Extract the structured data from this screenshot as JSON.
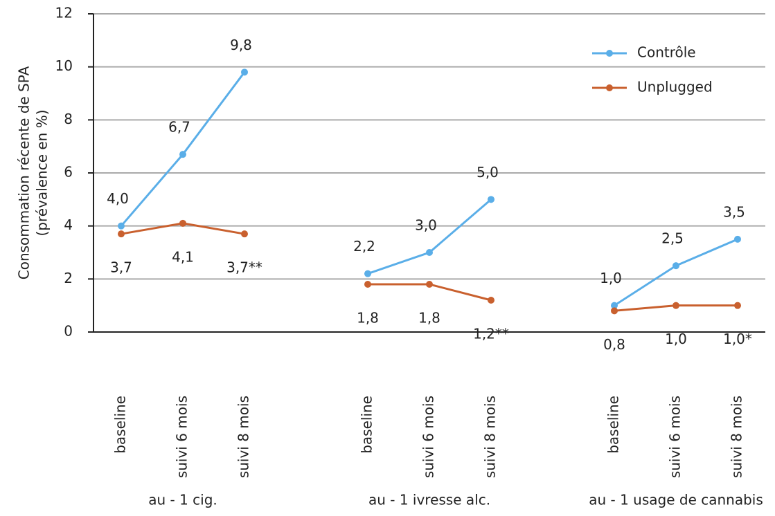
{
  "chart_data": {
    "type": "line",
    "ylabel": [
      "Consommation récente de SPA",
      "(prévalence en %)"
    ],
    "categories": [
      "baseline",
      "suivi 6 mois",
      "suivi 8 mois",
      null,
      "baseline",
      "suivi 6 mois",
      "suivi 8 mois",
      null,
      "baseline",
      "suivi 6 mois",
      "suivi 8 mois"
    ],
    "group_labels": [
      "au - 1 cig.",
      "au - 1 ivresse alc.",
      "au - 1 usage de cannabis"
    ],
    "series": [
      {
        "name": "Contrôle",
        "color": "#5aaee8",
        "values": [
          4.0,
          6.7,
          9.8,
          null,
          2.2,
          3.0,
          5.0,
          null,
          1.0,
          2.5,
          3.5
        ],
        "value_labels": [
          "4,0",
          "6,7",
          "9,8",
          null,
          "2,2",
          "3,0",
          "5,0",
          null,
          "1,0",
          "2,5",
          "3,5"
        ]
      },
      {
        "name": "Unplugged",
        "color": "#c9602e",
        "values": [
          3.7,
          4.1,
          3.7,
          null,
          1.8,
          1.8,
          1.2,
          null,
          0.8,
          1.0,
          1.0
        ],
        "value_labels": [
          "3,7",
          "4,1",
          "3,7**",
          null,
          "1,8",
          "1,8",
          "1,2**",
          null,
          "0,8",
          "1,0",
          "1,0*"
        ]
      }
    ],
    "ylim": [
      0,
      12
    ],
    "yticks": [
      0,
      2,
      4,
      6,
      8,
      10,
      12
    ],
    "grid": true,
    "legend": "upper right"
  }
}
